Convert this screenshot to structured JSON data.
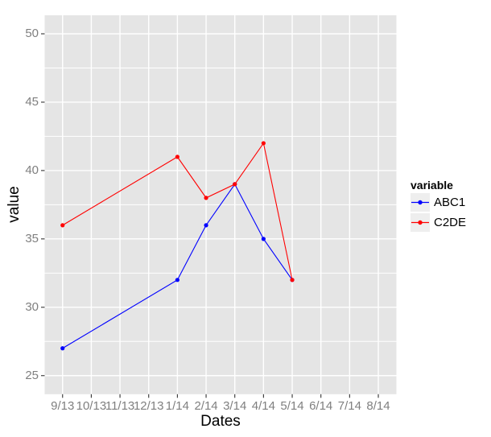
{
  "figure": {
    "kind": "ggplot-style line chart on white canvas"
  },
  "chart_data": {
    "type": "line",
    "title": "",
    "xlabel": "Dates",
    "ylabel": "value",
    "x_ticks": [
      "9/13",
      "10/13",
      "11/13",
      "12/13",
      "1/14",
      "2/14",
      "3/14",
      "4/14",
      "5/14",
      "6/14",
      "7/14",
      "8/14"
    ],
    "y_ticks": [
      25,
      30,
      35,
      40,
      45,
      50
    ],
    "ylim": [
      23.6,
      51.4
    ],
    "grid": true,
    "panel_bg": "#e5e5e5",
    "gridline_color": "#ffffff",
    "tick_mark_color": "#333333",
    "tick_label_color": "#7f7f7f",
    "legend": {
      "title": "variable",
      "position": "right",
      "key_bg": "#eeeeee"
    },
    "series": [
      {
        "name": "ABC1",
        "color": "#0000ff",
        "x": [
          "9/13",
          "1/14",
          "2/14",
          "3/14",
          "4/14",
          "5/14"
        ],
        "values": [
          27,
          32,
          36,
          39,
          35,
          32
        ]
      },
      {
        "name": "C2DE",
        "color": "#ff0000",
        "x": [
          "9/13",
          "1/14",
          "2/14",
          "3/14",
          "4/14",
          "5/14"
        ],
        "values": [
          36,
          41,
          38,
          39,
          42,
          32
        ]
      }
    ]
  }
}
